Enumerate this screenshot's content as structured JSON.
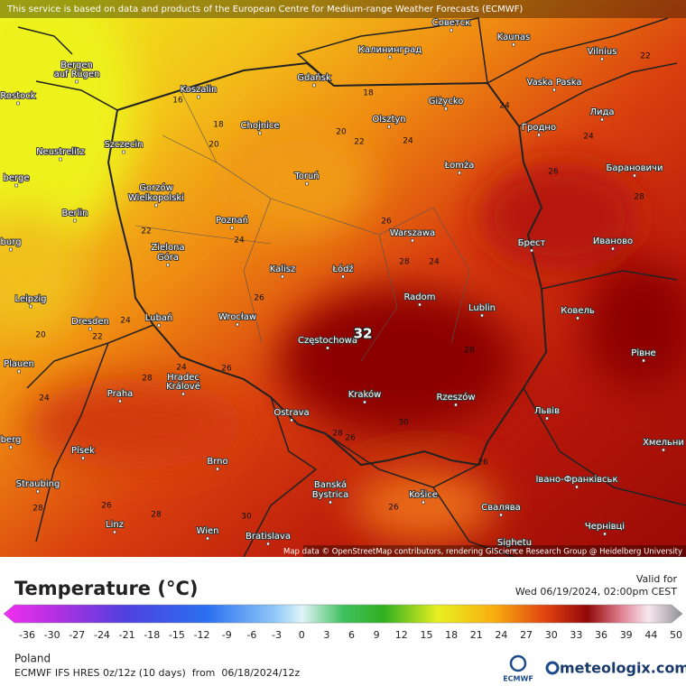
{
  "banner": "This service is based on data and products of the European Centre for Medium-range Weather Forecasts (ECMWF)",
  "attribution": "Map data © OpenStreetMap contributors, rendering GIScience Research Group @ Heidelberg University",
  "cities": [
    "Rostock",
    "Bergen",
    "auf Rügen",
    "Koszalin",
    "Gdańsk",
    "Калининград",
    "Советск",
    "Kaunas",
    "Vilnius",
    "Vaska Paska",
    "Giżycko",
    "Olsztyn",
    "Chojnice",
    "Szczecin",
    "Neustrelitz",
    "Гродно",
    "Лида",
    "Łomża",
    "Toruń",
    "Gorzów",
    "Wielkopolski",
    "Барановичи",
    "Berlin",
    "Poznań",
    "Warszawa",
    "Брест",
    "Иваново",
    "Zielona",
    "Góra",
    "Kalisz",
    "Łódź",
    "Radom",
    "Lublin",
    "Ковель",
    "Leipzig",
    "Dresden",
    "Lubań",
    "Wrocław",
    "Częstochowa",
    "Рівне",
    "Plauen",
    "Hradec",
    "Králové",
    "Praha",
    "Kraków",
    "Rzeszów",
    "Ostrava",
    "Львів",
    "Хмельни",
    "Písek",
    "Brno",
    "Straubing",
    "Banská",
    "Bystrica",
    "Košice",
    "Івано-Франківськ",
    "Свалява",
    "Чернівці",
    "Linz",
    "Wien",
    "Bratislava",
    "Sighetu",
    "berge",
    "burg",
    "berg"
  ],
  "contour_labels": [
    16,
    18,
    18,
    20,
    20,
    22,
    24,
    22,
    24,
    26,
    28,
    24,
    26,
    24,
    22,
    20,
    24,
    28,
    24,
    26,
    26,
    28,
    30,
    26,
    26,
    28,
    26,
    28,
    30,
    24,
    24,
    26,
    28,
    22,
    28
  ],
  "max_label": 32,
  "legend": {
    "title": "Temperature (°C)",
    "ticks": [
      -36,
      -30,
      -27,
      -24,
      -21,
      -18,
      -15,
      -12,
      -9,
      -6,
      -3,
      0,
      3,
      6,
      9,
      12,
      15,
      18,
      21,
      24,
      27,
      30,
      33,
      36,
      39,
      44,
      50
    ]
  },
  "valid": {
    "label": "Valid for",
    "time": "Wed 06/19/2024, 02:00pm CEST"
  },
  "footer": {
    "region": "Poland",
    "model": "ECMWF IFS HRES 0z/12z (10 days)  from  06/18/2024/12z",
    "logo_small": "ECMWF",
    "logo": "meteologix.com"
  }
}
